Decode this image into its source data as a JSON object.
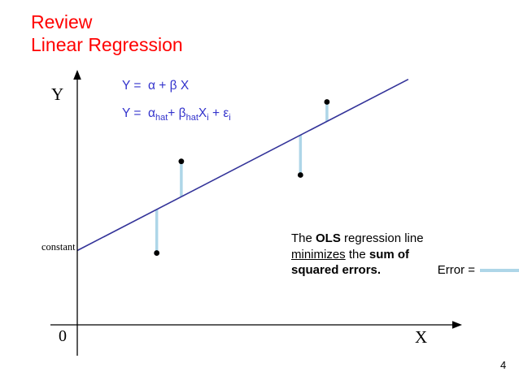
{
  "title": {
    "line1": "Review",
    "line2": "Linear Regression",
    "color": "#ff0000"
  },
  "equations": {
    "color": "#3333cc",
    "line1": "Y =  α + β X",
    "line2": {
      "p0": "Y =  α",
      "s0": "hat",
      "p1": "+ β",
      "s1": "hat",
      "p2": "X",
      "s2": "i",
      "p3": " + ε",
      "s3": "i"
    }
  },
  "axes": {
    "y_label": "Y",
    "x_label": "X",
    "origin_label": "0",
    "constant_label": "constant"
  },
  "caption": {
    "t1": "The ",
    "b1": "OLS",
    "t2": " regression line",
    "u1": "minimizes",
    "t3": " the ",
    "b2": "sum of",
    "b3": "squared errors.",
    "error_label": "Error =",
    "error_color": "#aed6e8"
  },
  "page_number": "4",
  "chart_data": {
    "type": "scatter",
    "title": "",
    "x_axis_label": "X",
    "y_axis_label": "Y",
    "axis_tick_labels": false,
    "x_range": [
      0,
      10
    ],
    "y_range": [
      0,
      10
    ],
    "regression_line": {
      "intercept": 3.0,
      "slope": 0.79,
      "x_start": 0,
      "x_end": 8.75,
      "color": "#333399"
    },
    "points": [
      {
        "x": 2.1,
        "y": 2.9
      },
      {
        "x": 2.75,
        "y": 6.6
      },
      {
        "x": 5.9,
        "y": 6.05
      },
      {
        "x": 6.6,
        "y": 9.0
      }
    ],
    "error_bars": "vertical segment from each point to the fitted regression line",
    "point_color": "#000000",
    "error_bar_color": "#aed6e8",
    "annotations": [
      "constant label marks the y-intercept of the regression line"
    ]
  }
}
